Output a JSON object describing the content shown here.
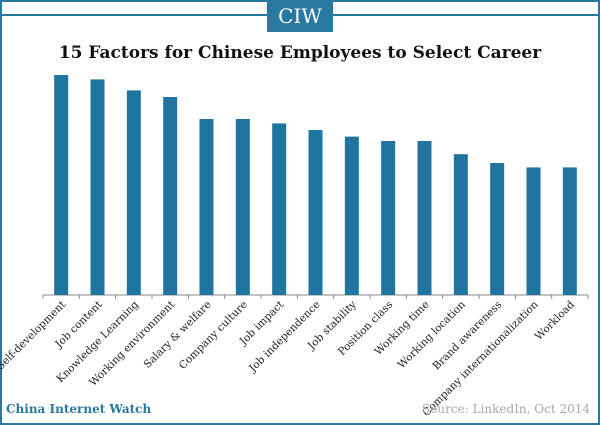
{
  "header": {
    "logo_text": "CIW"
  },
  "footer": {
    "brand": "China Internet Watch",
    "source": "Source: LinkedIn, Oct 2014"
  },
  "colors": {
    "accent": "#2878a0",
    "bar": "#2075a0"
  },
  "chart_data": {
    "type": "bar",
    "title": "15 Factors for Chinese Employees to Select Career",
    "xlabel": "",
    "ylabel": "",
    "ylim": [
      0,
      100
    ],
    "grid": false,
    "categories": [
      "Self-development",
      "Job content",
      "Knowledge Learning",
      "Working environment",
      "Salary & welfare",
      "Company culture",
      "Job impact",
      "Job independence",
      "Job stability",
      "Position class",
      "Working time",
      "Working location",
      "Brand awareness",
      "Company internationalization",
      "Workload"
    ],
    "values": [
      100,
      98,
      93,
      90,
      80,
      80,
      78,
      75,
      72,
      70,
      70,
      64,
      60,
      58,
      58
    ]
  }
}
